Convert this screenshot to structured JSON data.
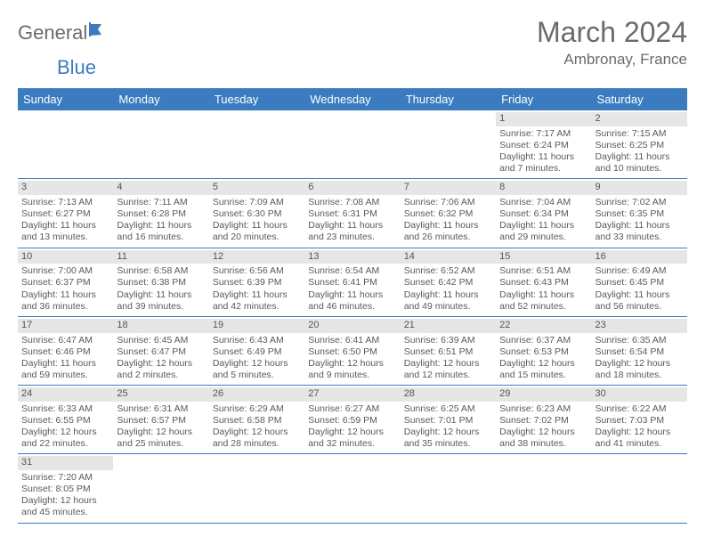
{
  "logo": {
    "text1": "General",
    "text2": "Blue"
  },
  "title": "March 2024",
  "location": "Ambronay, France",
  "colors": {
    "header_bg": "#3b7bbf",
    "header_text": "#ffffff",
    "daynum_bg": "#e6e6e6",
    "border": "#3b7bbf",
    "text": "#5a5a5a",
    "logo_gray": "#6b6b6b",
    "logo_blue": "#3b7bbf"
  },
  "day_names": [
    "Sunday",
    "Monday",
    "Tuesday",
    "Wednesday",
    "Thursday",
    "Friday",
    "Saturday"
  ],
  "weeks": [
    [
      {
        "empty": true
      },
      {
        "empty": true
      },
      {
        "empty": true
      },
      {
        "empty": true
      },
      {
        "empty": true
      },
      {
        "day": "1",
        "sunrise": "Sunrise: 7:17 AM",
        "sunset": "Sunset: 6:24 PM",
        "daylight": "Daylight: 11 hours and 7 minutes."
      },
      {
        "day": "2",
        "sunrise": "Sunrise: 7:15 AM",
        "sunset": "Sunset: 6:25 PM",
        "daylight": "Daylight: 11 hours and 10 minutes."
      }
    ],
    [
      {
        "day": "3",
        "sunrise": "Sunrise: 7:13 AM",
        "sunset": "Sunset: 6:27 PM",
        "daylight": "Daylight: 11 hours and 13 minutes."
      },
      {
        "day": "4",
        "sunrise": "Sunrise: 7:11 AM",
        "sunset": "Sunset: 6:28 PM",
        "daylight": "Daylight: 11 hours and 16 minutes."
      },
      {
        "day": "5",
        "sunrise": "Sunrise: 7:09 AM",
        "sunset": "Sunset: 6:30 PM",
        "daylight": "Daylight: 11 hours and 20 minutes."
      },
      {
        "day": "6",
        "sunrise": "Sunrise: 7:08 AM",
        "sunset": "Sunset: 6:31 PM",
        "daylight": "Daylight: 11 hours and 23 minutes."
      },
      {
        "day": "7",
        "sunrise": "Sunrise: 7:06 AM",
        "sunset": "Sunset: 6:32 PM",
        "daylight": "Daylight: 11 hours and 26 minutes."
      },
      {
        "day": "8",
        "sunrise": "Sunrise: 7:04 AM",
        "sunset": "Sunset: 6:34 PM",
        "daylight": "Daylight: 11 hours and 29 minutes."
      },
      {
        "day": "9",
        "sunrise": "Sunrise: 7:02 AM",
        "sunset": "Sunset: 6:35 PM",
        "daylight": "Daylight: 11 hours and 33 minutes."
      }
    ],
    [
      {
        "day": "10",
        "sunrise": "Sunrise: 7:00 AM",
        "sunset": "Sunset: 6:37 PM",
        "daylight": "Daylight: 11 hours and 36 minutes."
      },
      {
        "day": "11",
        "sunrise": "Sunrise: 6:58 AM",
        "sunset": "Sunset: 6:38 PM",
        "daylight": "Daylight: 11 hours and 39 minutes."
      },
      {
        "day": "12",
        "sunrise": "Sunrise: 6:56 AM",
        "sunset": "Sunset: 6:39 PM",
        "daylight": "Daylight: 11 hours and 42 minutes."
      },
      {
        "day": "13",
        "sunrise": "Sunrise: 6:54 AM",
        "sunset": "Sunset: 6:41 PM",
        "daylight": "Daylight: 11 hours and 46 minutes."
      },
      {
        "day": "14",
        "sunrise": "Sunrise: 6:52 AM",
        "sunset": "Sunset: 6:42 PM",
        "daylight": "Daylight: 11 hours and 49 minutes."
      },
      {
        "day": "15",
        "sunrise": "Sunrise: 6:51 AM",
        "sunset": "Sunset: 6:43 PM",
        "daylight": "Daylight: 11 hours and 52 minutes."
      },
      {
        "day": "16",
        "sunrise": "Sunrise: 6:49 AM",
        "sunset": "Sunset: 6:45 PM",
        "daylight": "Daylight: 11 hours and 56 minutes."
      }
    ],
    [
      {
        "day": "17",
        "sunrise": "Sunrise: 6:47 AM",
        "sunset": "Sunset: 6:46 PM",
        "daylight": "Daylight: 11 hours and 59 minutes."
      },
      {
        "day": "18",
        "sunrise": "Sunrise: 6:45 AM",
        "sunset": "Sunset: 6:47 PM",
        "daylight": "Daylight: 12 hours and 2 minutes."
      },
      {
        "day": "19",
        "sunrise": "Sunrise: 6:43 AM",
        "sunset": "Sunset: 6:49 PM",
        "daylight": "Daylight: 12 hours and 5 minutes."
      },
      {
        "day": "20",
        "sunrise": "Sunrise: 6:41 AM",
        "sunset": "Sunset: 6:50 PM",
        "daylight": "Daylight: 12 hours and 9 minutes."
      },
      {
        "day": "21",
        "sunrise": "Sunrise: 6:39 AM",
        "sunset": "Sunset: 6:51 PM",
        "daylight": "Daylight: 12 hours and 12 minutes."
      },
      {
        "day": "22",
        "sunrise": "Sunrise: 6:37 AM",
        "sunset": "Sunset: 6:53 PM",
        "daylight": "Daylight: 12 hours and 15 minutes."
      },
      {
        "day": "23",
        "sunrise": "Sunrise: 6:35 AM",
        "sunset": "Sunset: 6:54 PM",
        "daylight": "Daylight: 12 hours and 18 minutes."
      }
    ],
    [
      {
        "day": "24",
        "sunrise": "Sunrise: 6:33 AM",
        "sunset": "Sunset: 6:55 PM",
        "daylight": "Daylight: 12 hours and 22 minutes."
      },
      {
        "day": "25",
        "sunrise": "Sunrise: 6:31 AM",
        "sunset": "Sunset: 6:57 PM",
        "daylight": "Daylight: 12 hours and 25 minutes."
      },
      {
        "day": "26",
        "sunrise": "Sunrise: 6:29 AM",
        "sunset": "Sunset: 6:58 PM",
        "daylight": "Daylight: 12 hours and 28 minutes."
      },
      {
        "day": "27",
        "sunrise": "Sunrise: 6:27 AM",
        "sunset": "Sunset: 6:59 PM",
        "daylight": "Daylight: 12 hours and 32 minutes."
      },
      {
        "day": "28",
        "sunrise": "Sunrise: 6:25 AM",
        "sunset": "Sunset: 7:01 PM",
        "daylight": "Daylight: 12 hours and 35 minutes."
      },
      {
        "day": "29",
        "sunrise": "Sunrise: 6:23 AM",
        "sunset": "Sunset: 7:02 PM",
        "daylight": "Daylight: 12 hours and 38 minutes."
      },
      {
        "day": "30",
        "sunrise": "Sunrise: 6:22 AM",
        "sunset": "Sunset: 7:03 PM",
        "daylight": "Daylight: 12 hours and 41 minutes."
      }
    ],
    [
      {
        "day": "31",
        "sunrise": "Sunrise: 7:20 AM",
        "sunset": "Sunset: 8:05 PM",
        "daylight": "Daylight: 12 hours and 45 minutes."
      },
      {
        "empty": true
      },
      {
        "empty": true
      },
      {
        "empty": true
      },
      {
        "empty": true
      },
      {
        "empty": true
      },
      {
        "empty": true
      }
    ]
  ]
}
